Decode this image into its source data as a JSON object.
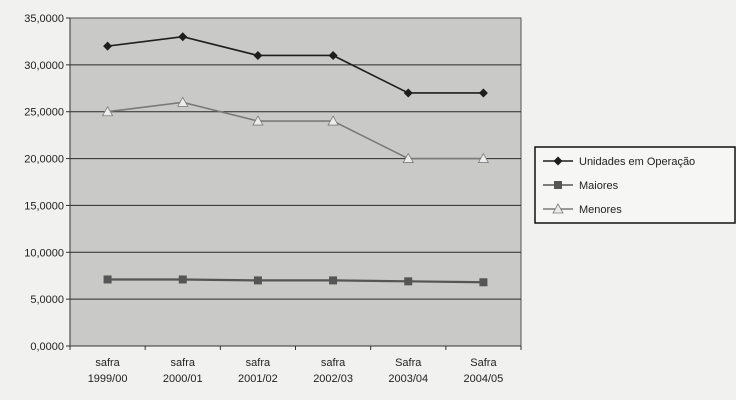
{
  "chart_data": {
    "type": "line",
    "title": "",
    "xlabel": "",
    "ylabel": "",
    "categories": [
      [
        "safra",
        "1999/00"
      ],
      [
        "safra",
        "2000/01"
      ],
      [
        "safra",
        "2001/02"
      ],
      [
        "safra",
        "2002/03"
      ],
      [
        "Safra",
        "2003/04"
      ],
      [
        "Safra",
        "2004/05"
      ]
    ],
    "ylim": [
      0,
      35
    ],
    "yticks": [
      "0,0000",
      "5,0000",
      "10,0000",
      "15,0000",
      "20,0000",
      "25,0000",
      "30,0000",
      "35,0000"
    ],
    "ytick_values": [
      0,
      5,
      10,
      15,
      20,
      25,
      30,
      35
    ],
    "grid": true,
    "legend_position": "right",
    "plot_background": "#c9c9c7",
    "series": [
      {
        "name": "Unidades em Operação",
        "values": [
          32,
          33,
          31,
          31,
          27,
          27
        ],
        "color": "#1e1e1e",
        "marker": "diamond"
      },
      {
        "name": "Maiores",
        "values": [
          7.1,
          7.1,
          7.0,
          7.0,
          6.9,
          6.8
        ],
        "color": "#555555",
        "marker": "square"
      },
      {
        "name": "Menores",
        "values": [
          25,
          26,
          24,
          24,
          20,
          20
        ],
        "color": "#7a7a7a",
        "marker": "triangle"
      }
    ]
  }
}
